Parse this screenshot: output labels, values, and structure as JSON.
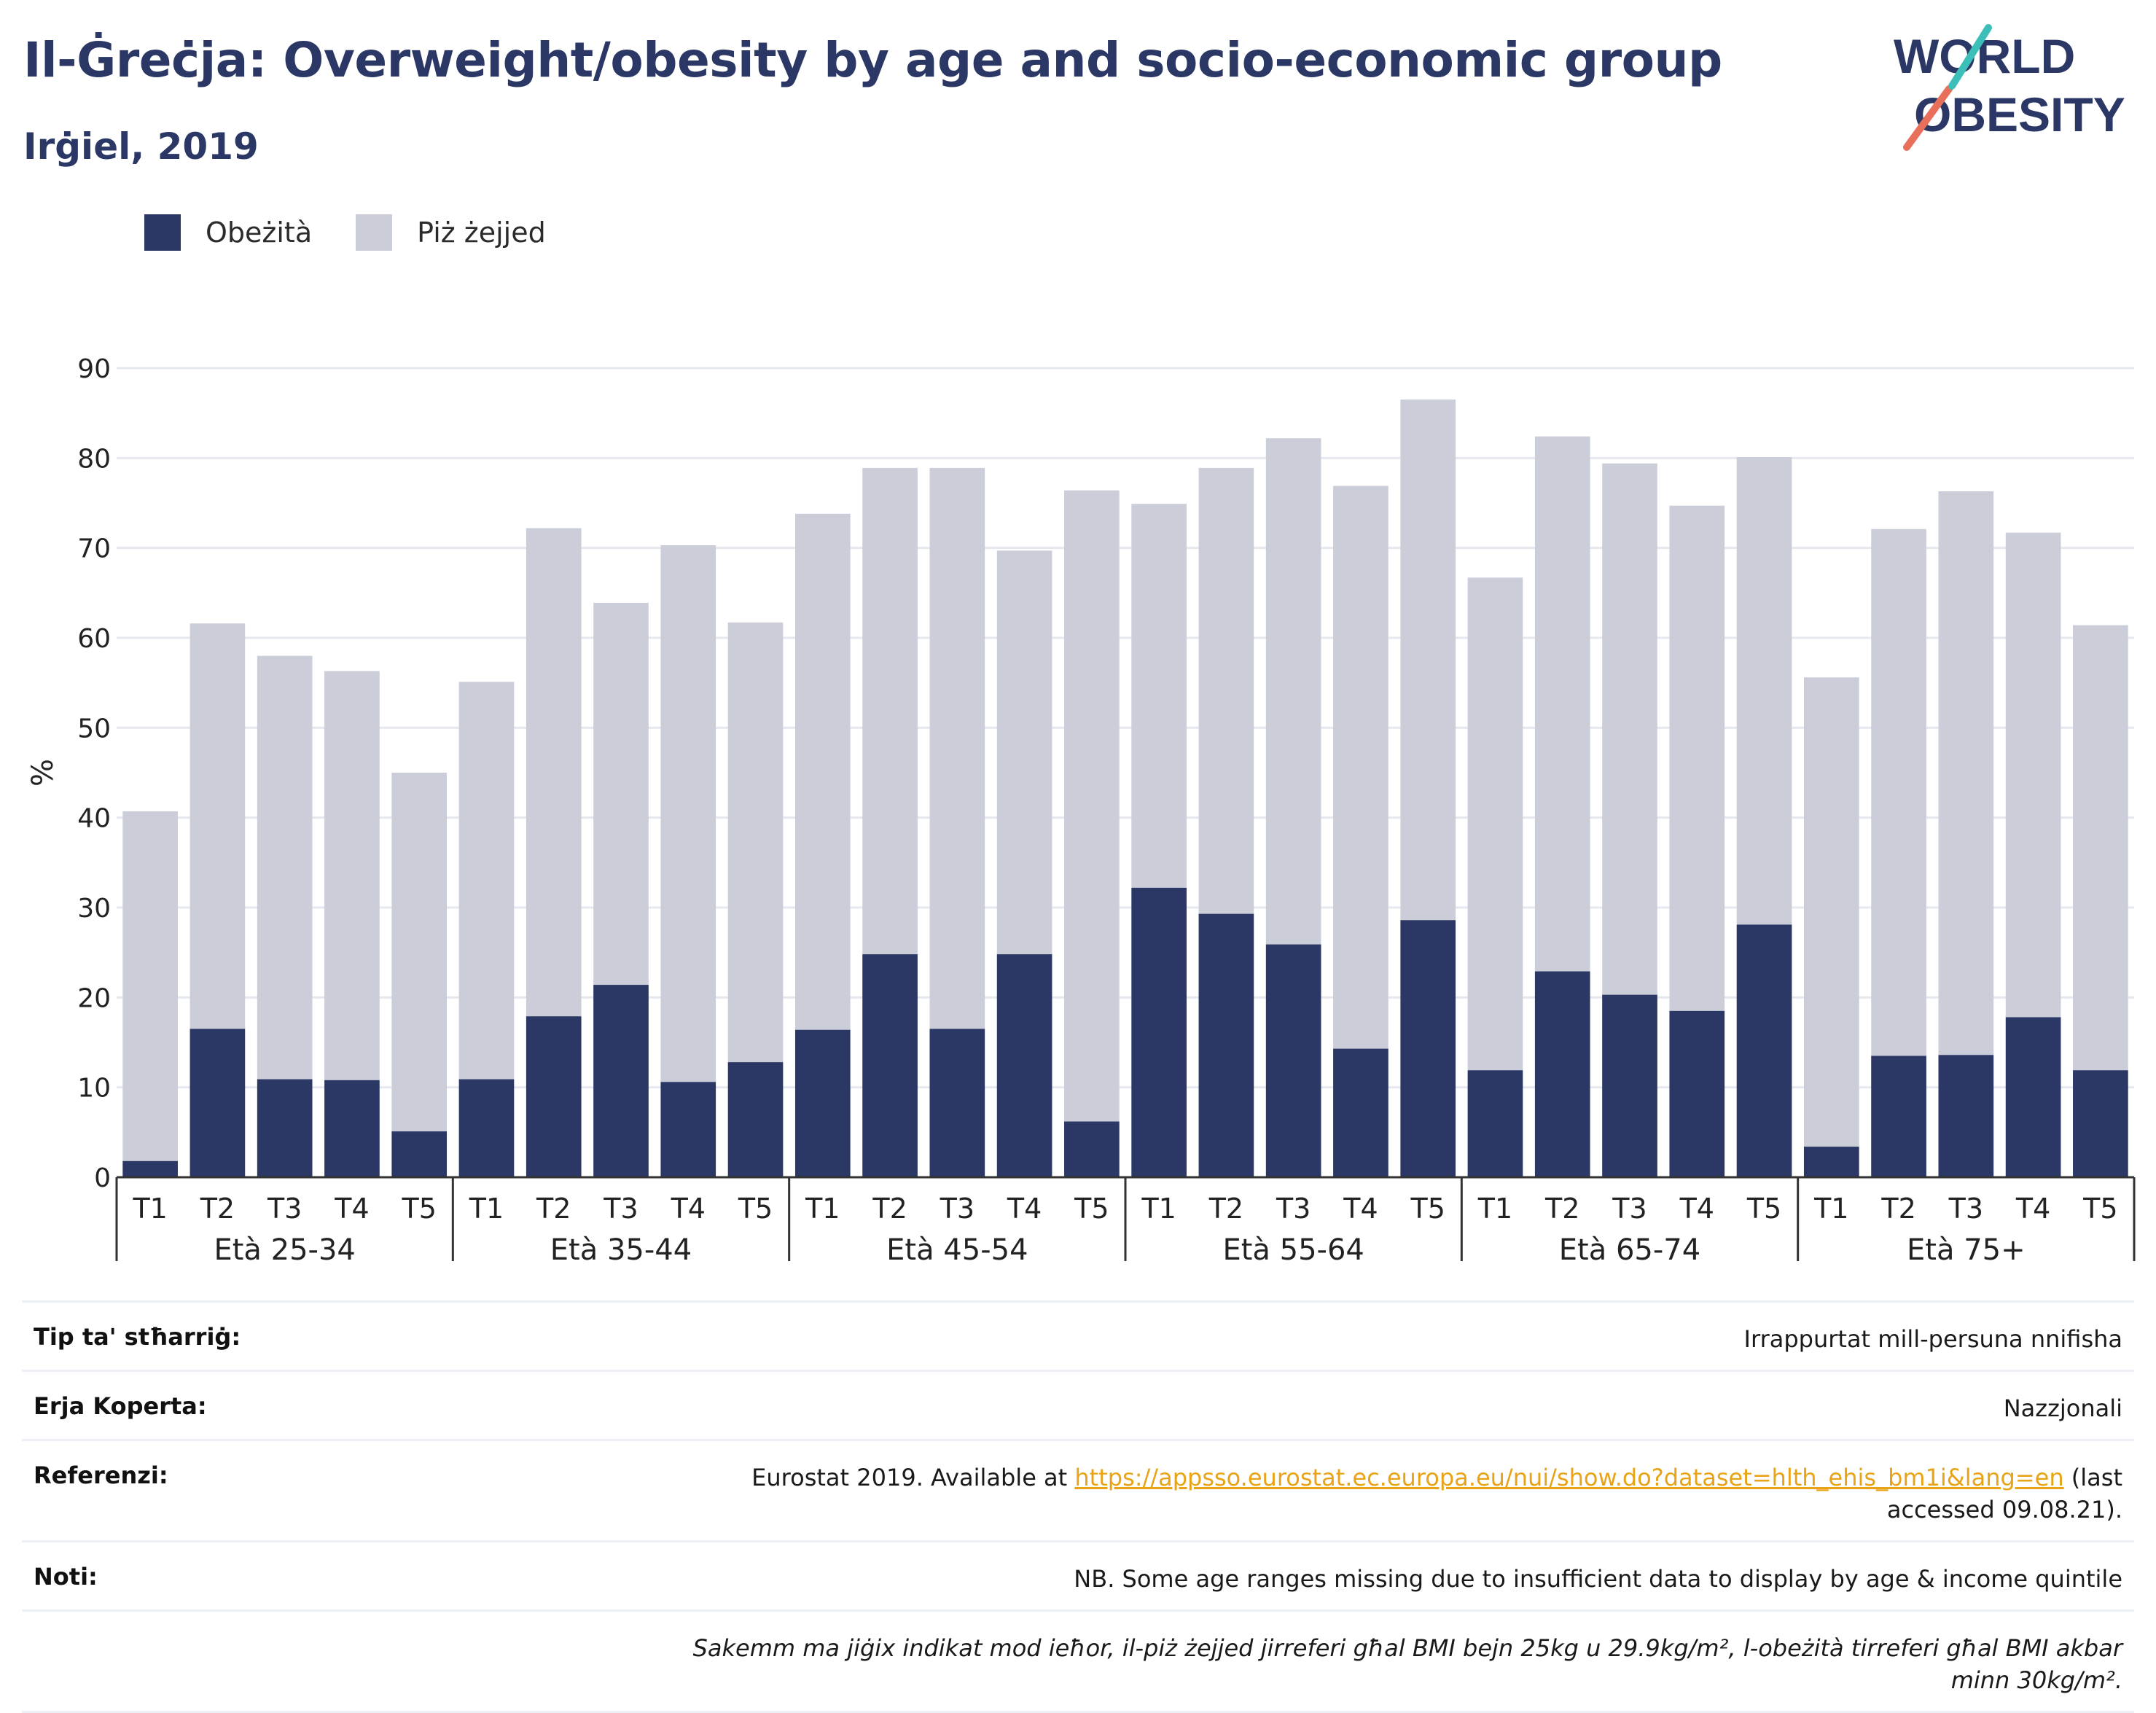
{
  "header": {
    "title": "Il-Ġreċja: Overweight/obesity by age and socio-economic group",
    "subtitle": "Irġiel, 2019",
    "logo_line1": "WORLD",
    "logo_line2": "OBESITY"
  },
  "colors": {
    "obese": "#2b3765",
    "overweight": "#cbcdd9",
    "title": "#2b3765",
    "link": "#e8a317",
    "logo_teal": "#3bbfb8",
    "logo_coral": "#e8705b"
  },
  "legend": [
    {
      "label": "Obeżità",
      "color": "#2b3765"
    },
    {
      "label": "Piż żejjed",
      "color": "#cbcdd9"
    }
  ],
  "chart_data": {
    "type": "bar",
    "stacked": true,
    "ylabel": "%",
    "ylim": [
      0,
      90
    ],
    "yticks": [
      0,
      10,
      20,
      30,
      40,
      50,
      60,
      70,
      80,
      90
    ],
    "grid": true,
    "legend_position": "top-left",
    "groups": [
      {
        "label": "Età 25-34",
        "categories": [
          "T1",
          "T2",
          "T3",
          "T4",
          "T5"
        ],
        "obese": [
          1.8,
          16.5,
          10.9,
          10.8,
          5.1
        ],
        "total": [
          40.7,
          61.6,
          58.0,
          56.3,
          45.0
        ]
      },
      {
        "label": "Età 35-44",
        "categories": [
          "T1",
          "T2",
          "T3",
          "T4",
          "T5"
        ],
        "obese": [
          10.9,
          17.9,
          21.4,
          10.6,
          12.8
        ],
        "total": [
          55.1,
          72.2,
          63.9,
          70.3,
          61.7
        ]
      },
      {
        "label": "Età 45-54",
        "categories": [
          "T1",
          "T2",
          "T3",
          "T4",
          "T5"
        ],
        "obese": [
          16.4,
          24.8,
          16.5,
          24.8,
          6.2
        ],
        "total": [
          73.8,
          78.9,
          78.9,
          69.7,
          76.4
        ]
      },
      {
        "label": "Età 55-64",
        "categories": [
          "T1",
          "T2",
          "T3",
          "T4",
          "T5"
        ],
        "obese": [
          32.2,
          29.3,
          25.9,
          14.3,
          28.6
        ],
        "total": [
          74.9,
          78.9,
          82.2,
          76.9,
          86.5
        ]
      },
      {
        "label": "Età 65-74",
        "categories": [
          "T1",
          "T2",
          "T3",
          "T4",
          "T5"
        ],
        "obese": [
          11.9,
          22.9,
          20.3,
          18.5,
          28.1
        ],
        "total": [
          66.7,
          82.4,
          79.4,
          74.7,
          80.1
        ]
      },
      {
        "label": "Età 75+",
        "categories": [
          "T1",
          "T2",
          "T3",
          "T4",
          "T5"
        ],
        "obese": [
          3.4,
          13.5,
          13.6,
          17.8,
          11.9
        ],
        "total": [
          55.6,
          72.1,
          76.3,
          71.7,
          61.4
        ]
      }
    ]
  },
  "footer": {
    "rows": [
      {
        "label": "Tip ta' stħarriġ:",
        "value": "Irrappurtat mill-persuna nnifisha"
      },
      {
        "label": "Erja Koperta:",
        "value": "Nazzjonali"
      }
    ],
    "references": {
      "label": "Referenzi:",
      "prefix": "Eurostat 2019. Available at ",
      "link": "https://appsso.eurostat.ec.europa.eu/nui/show.do?dataset=hlth_ehis_bm1i&lang=en",
      "suffix": " (last accessed 09.08.21)."
    },
    "notes": {
      "label": "Noti:",
      "value": "NB. Some age ranges missing due to insufficient data to display by age & income quintile"
    },
    "disclaimer": "Sakemm ma jiġix indikat mod ieħor, il-piż żejjed jirreferi għal BMI bejn 25kg u 29.9kg/m², l-obeżità tirreferi għal BMI akbar minn 30kg/m²."
  }
}
